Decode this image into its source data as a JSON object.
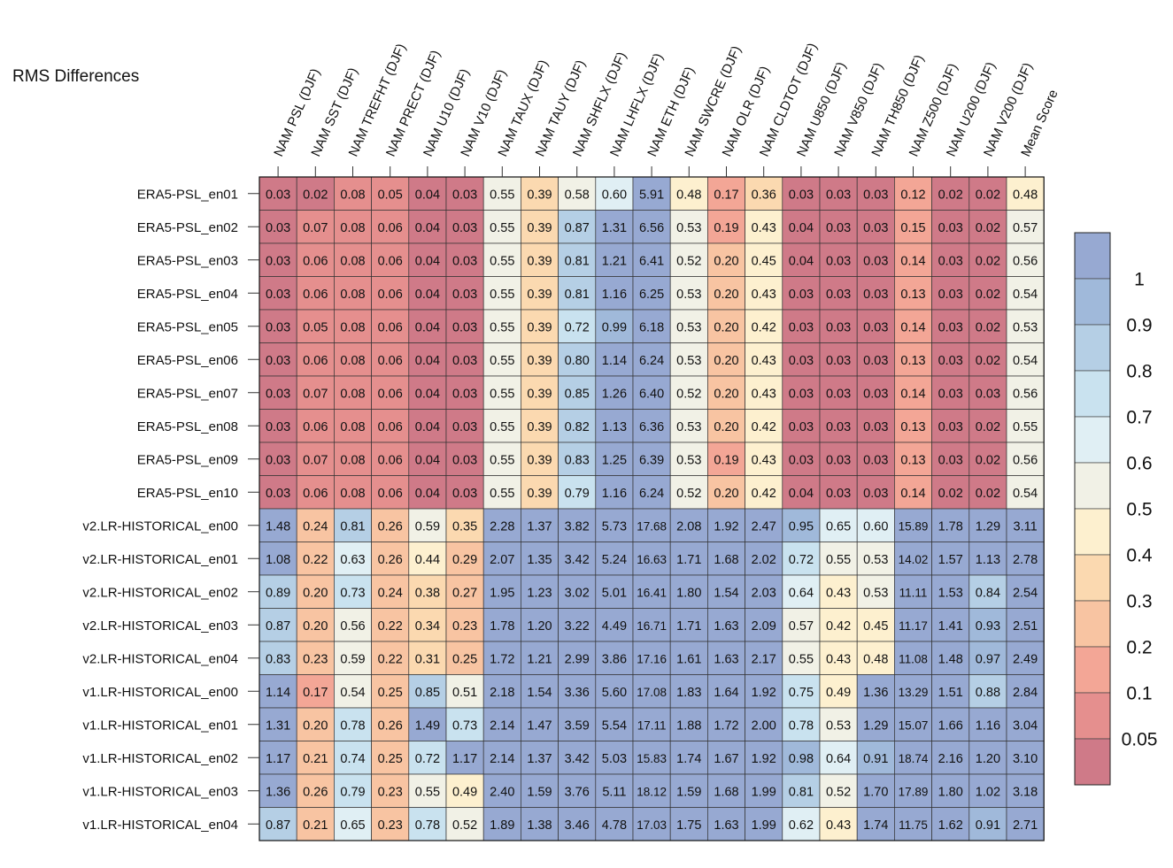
{
  "chart_data": {
    "type": "heatmap",
    "title": "RMS Differences",
    "columns": [
      "NAM PSL (DJF)",
      "NAM SST (DJF)",
      "NAM TREFHT (DJF)",
      "NAM PRECT (DJF)",
      "NAM U10 (DJF)",
      "NAM V10 (DJF)",
      "NAM TAUX (DJF)",
      "NAM TAUY (DJF)",
      "NAM SHFLX (DJF)",
      "NAM LHFLX (DJF)",
      "NAM ETH (DJF)",
      "NAM SWCRE (DJF)",
      "NAM OLR (DJF)",
      "NAM CLDTOT (DJF)",
      "NAM U850 (DJF)",
      "NAM V850 (DJF)",
      "NAM TH850 (DJF)",
      "NAM Z500 (DJF)",
      "NAM U200 (DJF)",
      "NAM V200 (DJF)",
      "Mean Score"
    ],
    "rows": [
      "ERA5-PSL_en01",
      "ERA5-PSL_en02",
      "ERA5-PSL_en03",
      "ERA5-PSL_en04",
      "ERA5-PSL_en05",
      "ERA5-PSL_en06",
      "ERA5-PSL_en07",
      "ERA5-PSL_en08",
      "ERA5-PSL_en09",
      "ERA5-PSL_en10",
      "v2.LR-HISTORICAL_en00",
      "v2.LR-HISTORICAL_en01",
      "v2.LR-HISTORICAL_en02",
      "v2.LR-HISTORICAL_en03",
      "v2.LR-HISTORICAL_en04",
      "v1.LR-HISTORICAL_en00",
      "v1.LR-HISTORICAL_en01",
      "v1.LR-HISTORICAL_en02",
      "v1.LR-HISTORICAL_en03",
      "v1.LR-HISTORICAL_en04"
    ],
    "values": [
      [
        "0.03",
        "0.02",
        "0.08",
        "0.05",
        "0.04",
        "0.03",
        "0.55",
        "0.39",
        "0.58",
        "0.60",
        "5.91",
        "0.48",
        "0.17",
        "0.36",
        "0.03",
        "0.03",
        "0.03",
        "0.12",
        "0.02",
        "0.02",
        "0.48"
      ],
      [
        "0.03",
        "0.07",
        "0.08",
        "0.06",
        "0.04",
        "0.03",
        "0.55",
        "0.39",
        "0.87",
        "1.31",
        "6.56",
        "0.53",
        "0.19",
        "0.43",
        "0.04",
        "0.03",
        "0.03",
        "0.15",
        "0.03",
        "0.02",
        "0.57"
      ],
      [
        "0.03",
        "0.06",
        "0.08",
        "0.06",
        "0.04",
        "0.03",
        "0.55",
        "0.39",
        "0.81",
        "1.21",
        "6.41",
        "0.52",
        "0.20",
        "0.45",
        "0.04",
        "0.03",
        "0.03",
        "0.14",
        "0.03",
        "0.02",
        "0.56"
      ],
      [
        "0.03",
        "0.06",
        "0.08",
        "0.06",
        "0.04",
        "0.03",
        "0.55",
        "0.39",
        "0.81",
        "1.16",
        "6.25",
        "0.53",
        "0.20",
        "0.43",
        "0.03",
        "0.03",
        "0.03",
        "0.13",
        "0.03",
        "0.02",
        "0.54"
      ],
      [
        "0.03",
        "0.05",
        "0.08",
        "0.06",
        "0.04",
        "0.03",
        "0.55",
        "0.39",
        "0.72",
        "0.99",
        "6.18",
        "0.53",
        "0.20",
        "0.42",
        "0.03",
        "0.03",
        "0.03",
        "0.14",
        "0.03",
        "0.02",
        "0.53"
      ],
      [
        "0.03",
        "0.06",
        "0.08",
        "0.06",
        "0.04",
        "0.03",
        "0.55",
        "0.39",
        "0.80",
        "1.14",
        "6.24",
        "0.53",
        "0.20",
        "0.43",
        "0.03",
        "0.03",
        "0.03",
        "0.13",
        "0.03",
        "0.02",
        "0.54"
      ],
      [
        "0.03",
        "0.07",
        "0.08",
        "0.06",
        "0.04",
        "0.03",
        "0.55",
        "0.39",
        "0.85",
        "1.26",
        "6.40",
        "0.52",
        "0.20",
        "0.43",
        "0.03",
        "0.03",
        "0.03",
        "0.14",
        "0.03",
        "0.03",
        "0.56"
      ],
      [
        "0.03",
        "0.06",
        "0.08",
        "0.06",
        "0.04",
        "0.03",
        "0.55",
        "0.39",
        "0.82",
        "1.13",
        "6.36",
        "0.53",
        "0.20",
        "0.42",
        "0.03",
        "0.03",
        "0.03",
        "0.13",
        "0.03",
        "0.02",
        "0.55"
      ],
      [
        "0.03",
        "0.07",
        "0.08",
        "0.06",
        "0.04",
        "0.03",
        "0.55",
        "0.39",
        "0.83",
        "1.25",
        "6.39",
        "0.53",
        "0.19",
        "0.43",
        "0.03",
        "0.03",
        "0.03",
        "0.13",
        "0.03",
        "0.02",
        "0.56"
      ],
      [
        "0.03",
        "0.06",
        "0.08",
        "0.06",
        "0.04",
        "0.03",
        "0.55",
        "0.39",
        "0.79",
        "1.16",
        "6.24",
        "0.52",
        "0.20",
        "0.42",
        "0.04",
        "0.03",
        "0.03",
        "0.14",
        "0.02",
        "0.02",
        "0.54"
      ],
      [
        "1.48",
        "0.24",
        "0.81",
        "0.26",
        "0.59",
        "0.35",
        "2.28",
        "1.37",
        "3.82",
        "5.73",
        "17.68",
        "2.08",
        "1.92",
        "2.47",
        "0.95",
        "0.65",
        "0.60",
        "15.89",
        "1.78",
        "1.29",
        "3.11"
      ],
      [
        "1.08",
        "0.22",
        "0.63",
        "0.26",
        "0.44",
        "0.29",
        "2.07",
        "1.35",
        "3.42",
        "5.24",
        "16.63",
        "1.71",
        "1.68",
        "2.02",
        "0.72",
        "0.55",
        "0.53",
        "14.02",
        "1.57",
        "1.13",
        "2.78"
      ],
      [
        "0.89",
        "0.20",
        "0.73",
        "0.24",
        "0.38",
        "0.27",
        "1.95",
        "1.23",
        "3.02",
        "5.01",
        "16.41",
        "1.80",
        "1.54",
        "2.03",
        "0.64",
        "0.43",
        "0.53",
        "11.11",
        "1.53",
        "0.84",
        "2.54"
      ],
      [
        "0.87",
        "0.20",
        "0.56",
        "0.22",
        "0.34",
        "0.23",
        "1.78",
        "1.20",
        "3.22",
        "4.49",
        "16.71",
        "1.71",
        "1.63",
        "2.09",
        "0.57",
        "0.42",
        "0.45",
        "11.17",
        "1.41",
        "0.93",
        "2.51"
      ],
      [
        "0.83",
        "0.23",
        "0.59",
        "0.22",
        "0.31",
        "0.25",
        "1.72",
        "1.21",
        "2.99",
        "3.86",
        "17.16",
        "1.61",
        "1.63",
        "2.17",
        "0.55",
        "0.43",
        "0.48",
        "11.08",
        "1.48",
        "0.97",
        "2.49"
      ],
      [
        "1.14",
        "0.17",
        "0.54",
        "0.25",
        "0.85",
        "0.51",
        "2.18",
        "1.54",
        "3.36",
        "5.60",
        "17.08",
        "1.83",
        "1.64",
        "1.92",
        "0.75",
        "0.49",
        "1.36",
        "13.29",
        "1.51",
        "0.88",
        "2.84"
      ],
      [
        "1.31",
        "0.20",
        "0.78",
        "0.26",
        "1.49",
        "0.73",
        "2.14",
        "1.47",
        "3.59",
        "5.54",
        "17.11",
        "1.88",
        "1.72",
        "2.00",
        "0.78",
        "0.53",
        "1.29",
        "15.07",
        "1.66",
        "1.16",
        "3.04"
      ],
      [
        "1.17",
        "0.21",
        "0.74",
        "0.25",
        "0.72",
        "1.17",
        "2.14",
        "1.37",
        "3.42",
        "5.03",
        "15.83",
        "1.74",
        "1.67",
        "1.92",
        "0.98",
        "0.64",
        "0.91",
        "18.74",
        "2.16",
        "1.20",
        "3.10"
      ],
      [
        "1.36",
        "0.26",
        "0.79",
        "0.23",
        "0.55",
        "0.49",
        "2.40",
        "1.59",
        "3.76",
        "5.11",
        "18.12",
        "1.59",
        "1.68",
        "1.99",
        "0.81",
        "0.52",
        "1.70",
        "17.89",
        "1.80",
        "1.02",
        "3.18"
      ],
      [
        "0.87",
        "0.21",
        "0.65",
        "0.23",
        "0.78",
        "0.52",
        "1.89",
        "1.38",
        "3.46",
        "4.78",
        "17.03",
        "1.75",
        "1.63",
        "1.99",
        "0.62",
        "0.43",
        "1.74",
        "11.75",
        "1.62",
        "0.91",
        "2.71"
      ]
    ],
    "colorbar": {
      "levels": [
        0.05,
        0.1,
        0.2,
        0.3,
        0.4,
        0.5,
        0.6,
        0.7,
        0.8,
        0.9,
        1
      ],
      "tick_labels": [
        "0.05",
        "0.1",
        "0.2",
        "0.3",
        "0.4",
        "0.5",
        "0.6",
        "0.7",
        "0.8",
        "0.9",
        "1"
      ],
      "colors": [
        "#cf7a88",
        "#e58f8e",
        "#f3a696",
        "#f8c4a2",
        "#fbd9b0",
        "#fdf0cf",
        "#f1f1e6",
        "#e0eff4",
        "#c9e2ef",
        "#b5cfe5",
        "#a0b9da",
        "#97a9d2"
      ]
    }
  }
}
